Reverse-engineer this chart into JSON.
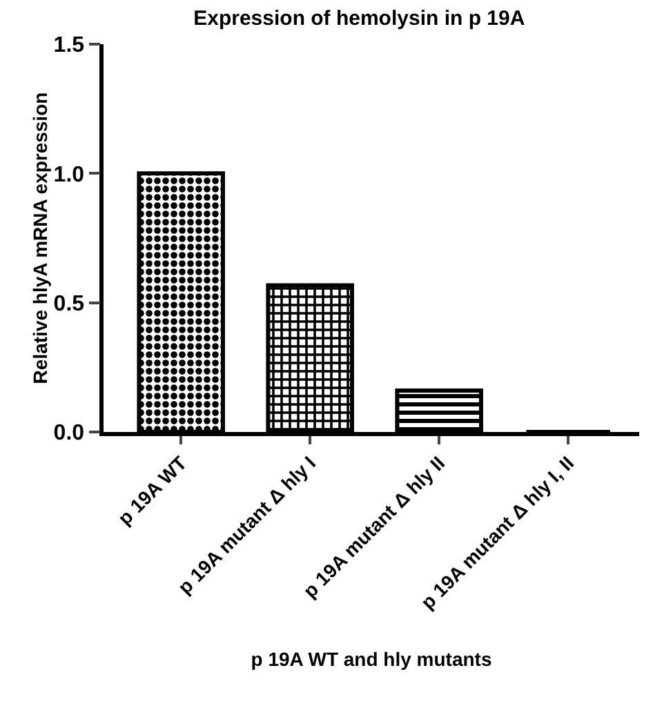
{
  "chart_data": {
    "type": "bar",
    "title": "Expression of hemolysin in p 19A",
    "xlabel": "p 19A WT and hly mutants",
    "ylabel": "Relative hlyA mRNA expression",
    "categories": [
      "p 19A WT",
      "p 19A mutant Δ hly I",
      "p 19A mutant Δ hly II",
      "p 19A mutant Δ hly I, II"
    ],
    "values": [
      1.0,
      0.567,
      0.16,
      0
    ],
    "colors": [
      "#000000",
      "#000000",
      "#000000",
      "#000000"
    ],
    "ylim": [
      0,
      1.5
    ],
    "yticks": [
      {
        "value": 0,
        "label": "0.0"
      },
      {
        "value": 0.5,
        "label": "0.5"
      },
      {
        "value": 1,
        "label": "1.0"
      },
      {
        "value": 1.5,
        "label": "1.5"
      }
    ],
    "legend": false
  }
}
